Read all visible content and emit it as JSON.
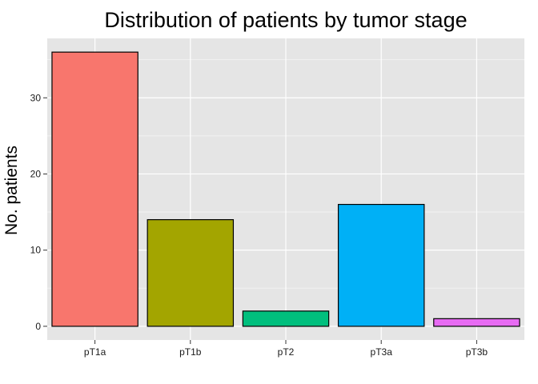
{
  "chart_data": {
    "type": "bar",
    "title": "Distribution of patients by tumor stage",
    "xlabel": "",
    "ylabel": "No. patients",
    "categories": [
      "pT1a",
      "pT1b",
      "pT2",
      "pT3a",
      "pT3b"
    ],
    "values": [
      36,
      14,
      2,
      16,
      1
    ],
    "colors": [
      "#F8766D",
      "#A3A500",
      "#00BF7D",
      "#00B0F6",
      "#E76BF3"
    ],
    "ylim": [
      -1.8,
      37.8
    ],
    "yticks": [
      0,
      10,
      20,
      30
    ],
    "yticklabels": [
      "0",
      "10",
      "20",
      "30"
    ],
    "grid": true,
    "legend": "none",
    "panel_background": "#E5E5E5",
    "grid_color": "#FFFFFF",
    "bar_outline": "#000000"
  }
}
